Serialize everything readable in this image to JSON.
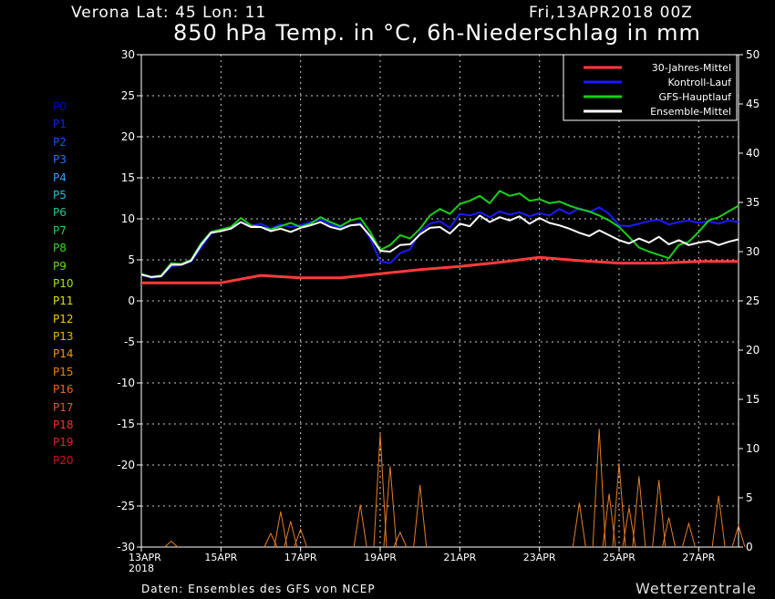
{
  "header": {
    "location": "Verona   Lat: 45 Lon: 11",
    "date": "Fri,13APR2018 00Z",
    "title": "850 hPa Temp. in °C, 6h-Niederschlag in mm"
  },
  "footer": {
    "source": "Daten: Ensembles des GFS von NCEP",
    "brand": "Wetterzentrale"
  },
  "members": [
    {
      "label": "P0",
      "color": "#0000cc"
    },
    {
      "label": "P1",
      "color": "#0a28e6"
    },
    {
      "label": "P2",
      "color": "#1450ff"
    },
    {
      "label": "P3",
      "color": "#1e78ff"
    },
    {
      "label": "P4",
      "color": "#28a0ff"
    },
    {
      "label": "P5",
      "color": "#20c0d8"
    },
    {
      "label": "P6",
      "color": "#20c890"
    },
    {
      "label": "P7",
      "color": "#20d050"
    },
    {
      "label": "P8",
      "color": "#30d820"
    },
    {
      "label": "P9",
      "color": "#60e010"
    },
    {
      "label": "P10",
      "color": "#a0e800"
    },
    {
      "label": "P11",
      "color": "#e0e000"
    },
    {
      "label": "P12",
      "color": "#f0c800"
    },
    {
      "label": "P13",
      "color": "#f0b000"
    },
    {
      "label": "P14",
      "color": "#f09800"
    },
    {
      "label": "P15",
      "color": "#f08000"
    },
    {
      "label": "P16",
      "color": "#f06818"
    },
    {
      "label": "P17",
      "color": "#f05020"
    },
    {
      "label": "P18",
      "color": "#f03820"
    },
    {
      "label": "P19",
      "color": "#e82020"
    },
    {
      "label": "P20",
      "color": "#d01010"
    }
  ],
  "chart_data": {
    "type": "line",
    "title": "850 hPa Temp. in °C, 6h-Niederschlag in mm",
    "ylim_left": [
      -30,
      30
    ],
    "ylim_right": [
      0,
      50
    ],
    "yticks_left": [
      "30",
      "25",
      "20",
      "15",
      "10",
      "5",
      "0",
      "-5",
      "-10",
      "-15",
      "-20",
      "-25",
      "-30"
    ],
    "yticks_right": [
      "50",
      "45",
      "40",
      "35",
      "30",
      "25",
      "20",
      "15",
      "10",
      "5",
      "0"
    ],
    "x_range_days": [
      0,
      15
    ],
    "xticks": [
      {
        "day": 0,
        "label": "13APR",
        "sub": "2018"
      },
      {
        "day": 2,
        "label": "15APR"
      },
      {
        "day": 4,
        "label": "17APR"
      },
      {
        "day": 6,
        "label": "19APR"
      },
      {
        "day": 8,
        "label": "21APR"
      },
      {
        "day": 10,
        "label": "23APR"
      },
      {
        "day": 12,
        "label": "25APR"
      },
      {
        "day": 14,
        "label": "27APR"
      }
    ],
    "grid": true,
    "legend_position": "top-right",
    "legend": [
      {
        "name": "30-Jahres-Mittel",
        "color": "#ff3b3b"
      },
      {
        "name": "Kontroll-Lauf",
        "color": "#1a1aff"
      },
      {
        "name": "GFS-Hauptlauf",
        "color": "#18d018"
      },
      {
        "name": "Ensemble-Mittel",
        "color": "#ffffff"
      }
    ],
    "series": [
      {
        "name": "30-Jahres-Mittel",
        "x": [
          0,
          1,
          2,
          3,
          4,
          5,
          6,
          7,
          8,
          9,
          10,
          11,
          12,
          13,
          14,
          15
        ],
        "values": [
          2.2,
          2.2,
          2.2,
          3.1,
          2.8,
          2.8,
          3.3,
          3.8,
          4.2,
          4.7,
          5.3,
          4.9,
          4.6,
          4.6,
          4.8,
          4.8
        ]
      },
      {
        "name": "Kontroll-Lauf",
        "x": [
          0,
          0.25,
          0.5,
          0.75,
          1,
          1.25,
          1.5,
          1.75,
          2,
          2.25,
          2.5,
          2.75,
          3,
          3.25,
          3.5,
          3.75,
          4,
          4.25,
          4.5,
          4.75,
          5,
          5.25,
          5.5,
          5.75,
          6,
          6.25,
          6.5,
          6.75,
          7,
          7.25,
          7.5,
          7.75,
          8,
          8.25,
          8.5,
          8.75,
          9,
          9.25,
          9.5,
          9.75,
          10,
          10.25,
          10.5,
          10.75,
          11,
          11.25,
          11.5,
          11.75,
          12,
          12.25,
          12.5,
          12.75,
          13,
          13.25,
          13.5,
          13.75,
          14,
          14.25,
          14.5,
          14.75,
          15
        ],
        "values": [
          3.2,
          2.8,
          3.0,
          4.2,
          4.4,
          4.8,
          6.5,
          8.2,
          8.6,
          8.9,
          9.6,
          9.1,
          9.4,
          8.8,
          9.3,
          9.0,
          9.2,
          9.6,
          9.9,
          9.3,
          8.9,
          9.2,
          9.5,
          7.6,
          4.8,
          4.6,
          5.8,
          6.3,
          8.4,
          9.4,
          9.7,
          8.9,
          10.6,
          10.4,
          10.8,
          10.2,
          10.9,
          10.5,
          10.8,
          10.3,
          10.7,
          10.4,
          11.2,
          10.6,
          11.3,
          10.8,
          11.4,
          10.6,
          9.2,
          9.1,
          9.4,
          9.7,
          9.9,
          9.3,
          9.6,
          9.8,
          9.5,
          9.7,
          9.4,
          9.8,
          9.6
        ]
      },
      {
        "name": "GFS-Hauptlauf",
        "x": [
          0,
          0.25,
          0.5,
          0.75,
          1,
          1.25,
          1.5,
          1.75,
          2,
          2.25,
          2.5,
          2.75,
          3,
          3.25,
          3.5,
          3.75,
          4,
          4.25,
          4.5,
          4.75,
          5,
          5.25,
          5.5,
          5.75,
          6,
          6.25,
          6.5,
          6.75,
          7,
          7.25,
          7.5,
          7.75,
          8,
          8.25,
          8.5,
          8.75,
          9,
          9.25,
          9.5,
          9.75,
          10,
          10.25,
          10.5,
          10.75,
          11,
          11.25,
          11.5,
          11.75,
          12,
          12.25,
          12.5,
          12.75,
          13,
          13.25,
          13.5,
          13.75,
          14,
          14.25,
          14.5,
          14.75,
          15
        ],
        "values": [
          3.3,
          2.9,
          3.1,
          4.6,
          4.5,
          5.0,
          7.0,
          8.4,
          8.7,
          9.0,
          10.1,
          9.2,
          9.0,
          8.7,
          9.1,
          9.5,
          9.0,
          9.4,
          10.2,
          9.6,
          9.1,
          9.8,
          10.1,
          8.4,
          6.2,
          6.8,
          8.0,
          7.6,
          8.8,
          10.4,
          11.2,
          10.6,
          11.8,
          12.2,
          12.8,
          11.9,
          13.4,
          12.8,
          13.1,
          12.2,
          12.4,
          11.9,
          12.1,
          11.6,
          11.2,
          10.9,
          10.4,
          9.8,
          9.0,
          7.8,
          6.5,
          6.0,
          5.6,
          5.2,
          6.8,
          7.2,
          8.4,
          9.8,
          10.2,
          10.9,
          11.6
        ]
      },
      {
        "name": "Ensemble-Mittel",
        "x": [
          0,
          0.25,
          0.5,
          0.75,
          1,
          1.25,
          1.5,
          1.75,
          2,
          2.25,
          2.5,
          2.75,
          3,
          3.25,
          3.5,
          3.75,
          4,
          4.25,
          4.5,
          4.75,
          5,
          5.25,
          5.5,
          5.75,
          6,
          6.25,
          6.5,
          6.75,
          7,
          7.25,
          7.5,
          7.75,
          8,
          8.25,
          8.5,
          8.75,
          9,
          9.25,
          9.5,
          9.75,
          10,
          10.25,
          10.5,
          10.75,
          11,
          11.25,
          11.5,
          11.75,
          12,
          12.25,
          12.5,
          12.75,
          13,
          13.25,
          13.5,
          13.75,
          14,
          14.25,
          14.5,
          14.75,
          15
        ],
        "values": [
          3.2,
          2.9,
          3.0,
          4.4,
          4.4,
          4.9,
          6.8,
          8.3,
          8.5,
          8.8,
          9.6,
          9.0,
          9.0,
          8.5,
          8.8,
          8.4,
          8.9,
          9.2,
          9.6,
          9.0,
          8.7,
          9.2,
          9.3,
          7.9,
          6.1,
          6.0,
          6.8,
          6.9,
          8.1,
          8.9,
          9.0,
          8.2,
          9.4,
          9.1,
          10.4,
          9.6,
          10.2,
          9.8,
          10.3,
          9.4,
          10.1,
          9.5,
          9.2,
          8.8,
          8.3,
          7.9,
          8.6,
          8.0,
          7.4,
          7.0,
          7.6,
          7.1,
          7.8,
          6.9,
          7.4,
          6.8,
          7.1,
          7.3,
          6.8,
          7.2,
          7.5
        ]
      }
    ],
    "precip_unit": "mm",
    "precip_spikes_mm": [
      {
        "day": 0.75,
        "mm": 0.6
      },
      {
        "day": 3.25,
        "mm": 1.4
      },
      {
        "day": 3.5,
        "mm": 3.6
      },
      {
        "day": 3.75,
        "mm": 2.6
      },
      {
        "day": 4.0,
        "mm": 1.8
      },
      {
        "day": 5.5,
        "mm": 4.3
      },
      {
        "day": 6.0,
        "mm": 11.5
      },
      {
        "day": 6.25,
        "mm": 8.2
      },
      {
        "day": 6.5,
        "mm": 1.5
      },
      {
        "day": 7.0,
        "mm": 6.3
      },
      {
        "day": 11.0,
        "mm": 4.5
      },
      {
        "day": 11.5,
        "mm": 12.0
      },
      {
        "day": 11.75,
        "mm": 5.4
      },
      {
        "day": 12.0,
        "mm": 8.5
      },
      {
        "day": 12.25,
        "mm": 4.0
      },
      {
        "day": 12.5,
        "mm": 7.2
      },
      {
        "day": 13.0,
        "mm": 6.8
      },
      {
        "day": 13.25,
        "mm": 3.0
      },
      {
        "day": 13.75,
        "mm": 2.4
      },
      {
        "day": 14.5,
        "mm": 5.2
      },
      {
        "day": 15.0,
        "mm": 2.2
      }
    ]
  }
}
